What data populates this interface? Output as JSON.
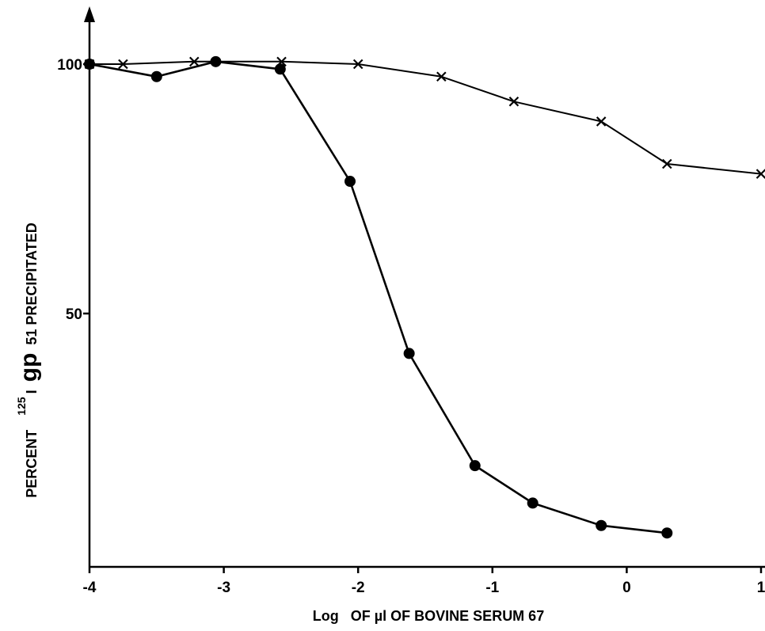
{
  "chart_data": {
    "type": "line",
    "title": "",
    "xlabel": {
      "prefix": "Log",
      "rest": "OF µl OF BOVINE SERUM 67"
    },
    "ylabel": {
      "part1": "PERCENT",
      "sup": "125",
      "part2": "I",
      "big": "gp",
      "part3": "51 PRECIPITATED"
    },
    "xlim": [
      -4,
      1
    ],
    "ylim": [
      0,
      100
    ],
    "x_ticks": [
      -4,
      -3,
      -2,
      -1,
      0,
      1
    ],
    "x_tick_labels": [
      "-4",
      "-3",
      "-2",
      "-1",
      "0",
      "1"
    ],
    "y_ticks": [
      50,
      100
    ],
    "y_tick_labels": [
      "50",
      "100"
    ],
    "grid": false,
    "series": [
      {
        "marker": "filled-circle",
        "points": [
          [
            -4.0,
            100
          ],
          [
            -3.5,
            97.5
          ],
          [
            -3.06,
            100.5
          ],
          [
            -2.58,
            99.0
          ],
          [
            -2.06,
            76.5
          ],
          [
            -1.62,
            42.0
          ],
          [
            -1.13,
            19.5
          ],
          [
            -0.7,
            12.0
          ],
          [
            -0.19,
            7.5
          ],
          [
            0.3,
            6.0
          ]
        ]
      },
      {
        "marker": "cross",
        "points": [
          [
            -4.0,
            100
          ],
          [
            -3.75,
            100
          ],
          [
            -3.22,
            100.5
          ],
          [
            -2.57,
            100.5
          ],
          [
            -2.0,
            100
          ],
          [
            -1.38,
            97.5
          ],
          [
            -0.84,
            92.5
          ],
          [
            -0.19,
            88.5
          ],
          [
            0.3,
            80.0
          ],
          [
            1.0,
            78.0
          ]
        ]
      }
    ]
  }
}
